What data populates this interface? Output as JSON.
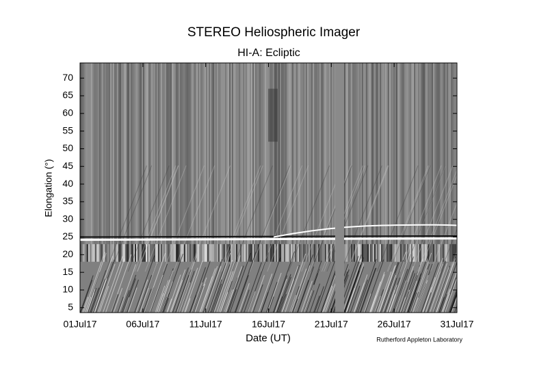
{
  "chart_data": {
    "type": "image",
    "title": "STEREO Heliospheric Imager",
    "subtitle": "HI-A: Ecliptic",
    "x_label": "Date (UT)",
    "y_label": "Elongation (°)",
    "credit": "Rutherford Appleton Laboratory",
    "xlim": [
      1,
      31
    ],
    "xticks": [
      {
        "value": 1,
        "label": "01Jul17"
      },
      {
        "value": 6,
        "label": "06Jul17"
      },
      {
        "value": 11,
        "label": "11Jul17"
      },
      {
        "value": 16,
        "label": "16Jul17"
      },
      {
        "value": 21,
        "label": "21Jul17"
      },
      {
        "value": 26,
        "label": "26Jul17"
      },
      {
        "value": 31,
        "label": "31Jul17"
      }
    ],
    "ylim": [
      3.6,
      74.3
    ],
    "yticks": [
      5,
      10,
      15,
      20,
      25,
      30,
      35,
      40,
      45,
      50,
      55,
      60,
      65,
      70
    ]
  }
}
